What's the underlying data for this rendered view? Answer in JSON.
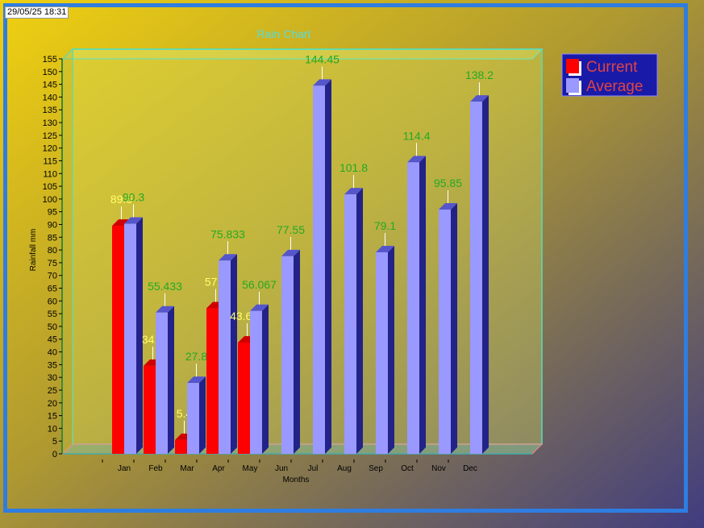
{
  "timestamp": "29/05/25 18:31",
  "colors": {
    "current_front": "#ff0000",
    "current_side": "#a00000",
    "current_top": "#d00000",
    "average_front": "#9999ff",
    "average_side": "#222288",
    "average_top": "#5555cc",
    "current_label": "#ffff66",
    "average_label": "#22aa22",
    "title": "#55dddd",
    "frame": "#2f7de0",
    "legend_bg": "#1a1aa8",
    "legend_text": "#dd4444"
  },
  "chart_data": {
    "type": "bar",
    "title": "Rain Chart",
    "xlabel": "Months",
    "ylabel": "Rainfall mm",
    "ylim": [
      0,
      155
    ],
    "ytick_step": 5,
    "legend_position": "top-right",
    "grid": false,
    "categories": [
      "Jan",
      "Feb",
      "Mar",
      "Apr",
      "May",
      "Jun",
      "Jul",
      "Aug",
      "Sep",
      "Oct",
      "Nov",
      "Dec"
    ],
    "series": [
      {
        "name": "Current",
        "values": [
          89.5,
          34.5,
          5.4,
          57.1,
          43.654,
          null,
          null,
          null,
          null,
          null,
          null,
          null
        ],
        "labels": [
          "89.5",
          "34.5",
          "5.4",
          "57.1",
          "43.654",
          "",
          "",
          "",
          "",
          "",
          "",
          ""
        ]
      },
      {
        "name": "Average",
        "values": [
          90.3,
          55.433,
          27.8,
          75.833,
          56.067,
          77.55,
          144.45,
          101.8,
          79.1,
          114.4,
          95.85,
          138.2
        ],
        "labels": [
          "90.3",
          "55.433",
          "27.8",
          "75.833",
          "56.067",
          "77.55",
          "144.45",
          "101.8",
          "79.1",
          "114.4",
          "95.85",
          "138.2"
        ]
      }
    ]
  }
}
